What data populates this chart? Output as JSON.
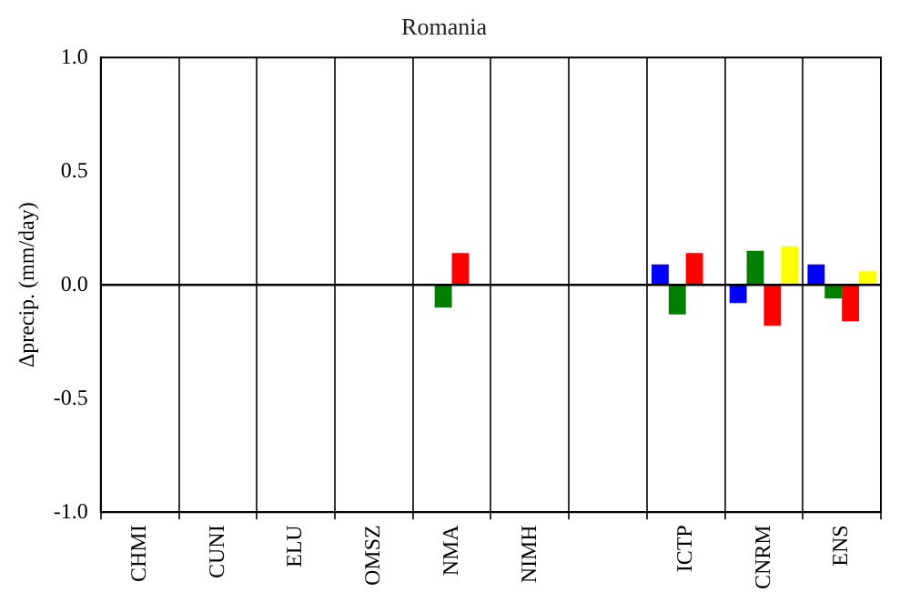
{
  "chart_data": {
    "type": "bar",
    "title": "Romania",
    "ylabel": "Δprecip. (mm/day)",
    "categories": [
      "CHMI",
      "CUNI",
      "ELU",
      "OMSZ",
      "NMA",
      "NIMH",
      null,
      "ICTP",
      "CNRM",
      "ENS"
    ],
    "series": [
      {
        "color": "#0000ff",
        "values": [
          null,
          null,
          null,
          null,
          null,
          null,
          null,
          0.09,
          -0.08,
          0.09
        ]
      },
      {
        "color": "#007f00",
        "values": [
          null,
          null,
          null,
          null,
          -0.1,
          null,
          null,
          -0.13,
          0.15,
          -0.06
        ]
      },
      {
        "color": "#ff0000",
        "values": [
          null,
          null,
          null,
          null,
          0.14,
          null,
          null,
          0.14,
          -0.18,
          -0.16
        ]
      },
      {
        "color": "#ffff00",
        "values": [
          null,
          null,
          null,
          null,
          null,
          null,
          null,
          null,
          0.17,
          0.06
        ]
      }
    ],
    "ylim": [
      -1,
      1
    ],
    "yticks": [
      {
        "value": -1,
        "label": "-1.0"
      },
      {
        "value": -0.5,
        "label": "-0.5"
      },
      {
        "value": 0,
        "label": "0.0"
      },
      {
        "value": 0.5,
        "label": "0.5"
      },
      {
        "value": 1,
        "label": "1.0"
      }
    ],
    "ref_lines": [
      {
        "axis": "y",
        "value": 0
      }
    ],
    "grid": "x",
    "legend": false
  }
}
